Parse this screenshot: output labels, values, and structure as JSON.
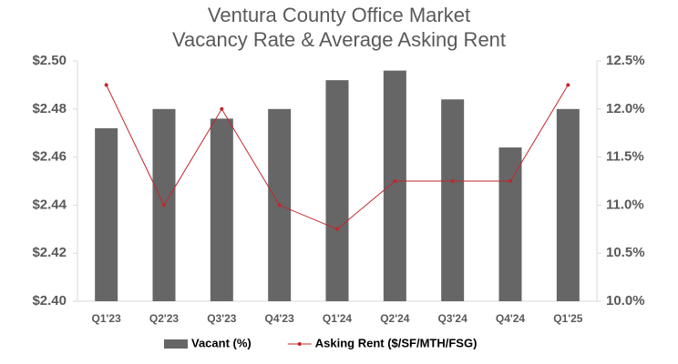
{
  "chart_data": {
    "type": "bar-line",
    "title": "Ventura County Office Market",
    "subtitle": "Vacancy Rate & Average Asking Rent",
    "categories": [
      "Q1'23",
      "Q2'23",
      "Q3'23",
      "Q4'23",
      "Q1'24",
      "Q2'24",
      "Q3'24",
      "Q4'24",
      "Q1'25"
    ],
    "series": [
      {
        "name": "Vacant (%)",
        "type": "bar",
        "axis": "y2",
        "color": "#666666",
        "values": [
          11.8,
          12.0,
          11.9,
          12.0,
          12.3,
          12.4,
          12.1,
          11.6,
          12.0
        ]
      },
      {
        "name": "Asking Rent ($/SF/MTH/FSG)",
        "type": "line",
        "axis": "y",
        "color": "#c0272d",
        "values": [
          2.49,
          2.44,
          2.48,
          2.44,
          2.43,
          2.45,
          2.45,
          2.45,
          2.49
        ]
      }
    ],
    "ylim": [
      2.4,
      2.5
    ],
    "yticks": [
      {
        "value": 2.4,
        "label": "$2.40"
      },
      {
        "value": 2.42,
        "label": "$2.42"
      },
      {
        "value": 2.44,
        "label": "$2.44"
      },
      {
        "value": 2.46,
        "label": "$2.46"
      },
      {
        "value": 2.48,
        "label": "$2.48"
      },
      {
        "value": 2.5,
        "label": "$2.50"
      }
    ],
    "y2lim": [
      10.0,
      12.5
    ],
    "y2ticks": [
      {
        "value": 10.0,
        "label": "10.0%"
      },
      {
        "value": 10.5,
        "label": "10.5%"
      },
      {
        "value": 11.0,
        "label": "11.0%"
      },
      {
        "value": 11.5,
        "label": "11.5%"
      },
      {
        "value": 12.0,
        "label": "12.0%"
      },
      {
        "value": 12.5,
        "label": "12.5%"
      }
    ],
    "grid": false,
    "legend": "bottom"
  }
}
